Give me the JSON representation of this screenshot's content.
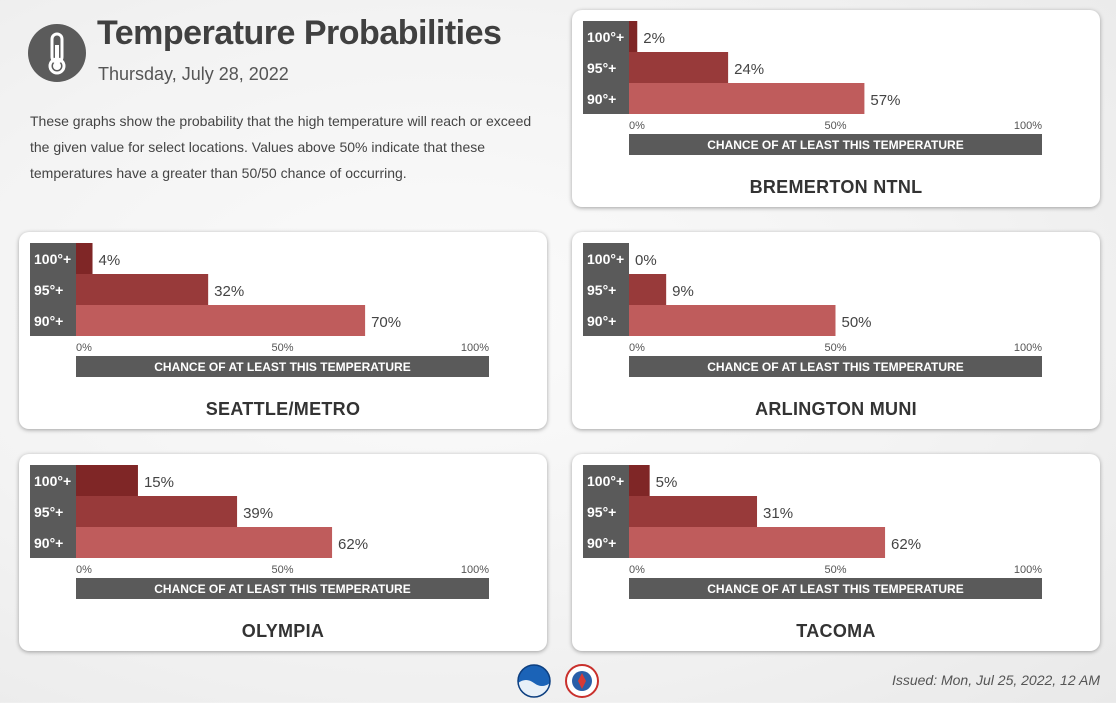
{
  "header": {
    "title": "Temperature Probabilities",
    "date": "Thursday, July 28, 2022",
    "icon": "thermometer-icon",
    "description": "These graphs show the probability that the high temperature will reach or exceed the given value for select locations. Values above 50% indicate that these temperatures have a greater than 50/50 chance of occurring."
  },
  "colors": {
    "bar_100": "#7f2626",
    "bar_95": "#983a3a",
    "bar_90": "#bf5c5c",
    "label_bg": "#5a5a5a"
  },
  "footer": {
    "issued": "Issued: Mon, Jul 25, 2022, 12 AM",
    "logos": [
      "noaa-logo",
      "nws-logo"
    ]
  },
  "chart_data": [
    {
      "type": "bar",
      "title": "BREMERTON NTNL",
      "categories": [
        "100°+",
        "95°+",
        "90°+"
      ],
      "values": [
        2,
        24,
        57
      ],
      "value_labels": [
        "2%",
        "24%",
        "57%"
      ],
      "xlabel": "CHANCE OF AT LEAST THIS TEMPERATURE",
      "xticks": [
        "0%",
        "50%",
        "100%"
      ],
      "xlim": [
        0,
        100
      ]
    },
    {
      "type": "bar",
      "title": "SEATTLE/METRO",
      "categories": [
        "100°+",
        "95°+",
        "90°+"
      ],
      "values": [
        4,
        32,
        70
      ],
      "value_labels": [
        "4%",
        "32%",
        "70%"
      ],
      "xlabel": "CHANCE OF AT LEAST THIS TEMPERATURE",
      "xticks": [
        "0%",
        "50%",
        "100%"
      ],
      "xlim": [
        0,
        100
      ]
    },
    {
      "type": "bar",
      "title": "ARLINGTON MUNI",
      "categories": [
        "100°+",
        "95°+",
        "90°+"
      ],
      "values": [
        0,
        9,
        50
      ],
      "value_labels": [
        "0%",
        "9%",
        "50%"
      ],
      "xlabel": "CHANCE OF AT LEAST THIS TEMPERATURE",
      "xticks": [
        "0%",
        "50%",
        "100%"
      ],
      "xlim": [
        0,
        100
      ]
    },
    {
      "type": "bar",
      "title": "OLYMPIA",
      "categories": [
        "100°+",
        "95°+",
        "90°+"
      ],
      "values": [
        15,
        39,
        62
      ],
      "value_labels": [
        "15%",
        "39%",
        "62%"
      ],
      "xlabel": "CHANCE OF AT LEAST THIS TEMPERATURE",
      "xticks": [
        "0%",
        "50%",
        "100%"
      ],
      "xlim": [
        0,
        100
      ]
    },
    {
      "type": "bar",
      "title": "TACOMA",
      "categories": [
        "100°+",
        "95°+",
        "90°+"
      ],
      "values": [
        5,
        31,
        62
      ],
      "value_labels": [
        "5%",
        "31%",
        "62%"
      ],
      "xlabel": "CHANCE OF AT LEAST THIS TEMPERATURE",
      "xticks": [
        "0%",
        "50%",
        "100%"
      ],
      "xlim": [
        0,
        100
      ]
    }
  ]
}
